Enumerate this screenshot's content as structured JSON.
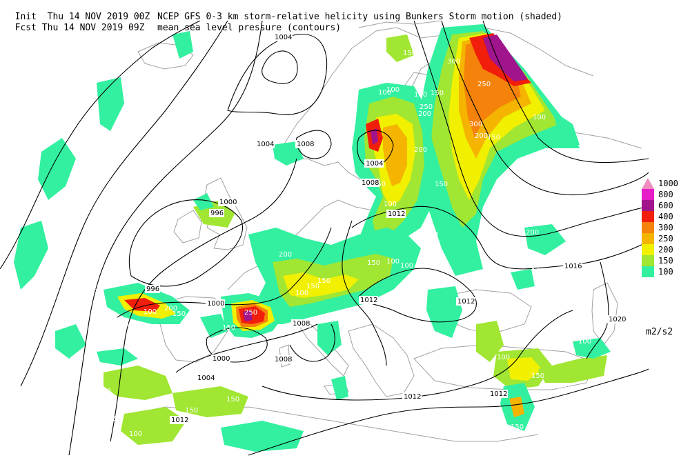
{
  "header": {
    "line1_left": "Init  Thu 14 NOV 2019 00Z",
    "line1_right": "NCEP GFS 0-3 km storm-relative helicity using Bunkers Storm motion (shaded)",
    "line2_left": "Fcst Thu 14 NOV 2019 09Z",
    "line2_right": "mean sea level pressure (contours)"
  },
  "legend": {
    "units": "m2/s2",
    "levels": [
      {
        "label": "1000",
        "color": "#f08cc0"
      },
      {
        "label": "800",
        "color": "#e61ec8"
      },
      {
        "label": "600",
        "color": "#a0148c"
      },
      {
        "label": "400",
        "color": "#f01e0a"
      },
      {
        "label": "300",
        "color": "#f5820a"
      },
      {
        "label": "250",
        "color": "#f5b400"
      },
      {
        "label": "200",
        "color": "#f0f000"
      },
      {
        "label": "150",
        "color": "#a0e632"
      },
      {
        "label": "100",
        "color": "#32f0a0"
      }
    ]
  },
  "map": {
    "coastline_color": "#a0a0a0",
    "contour_color": "#000000",
    "isobar_labels": [
      "1004",
      "1008",
      "1004",
      "1004",
      "1000",
      "996",
      "996",
      "1000",
      "1012",
      "1008",
      "1012",
      "1012",
      "1016",
      "1020",
      "1008",
      "1000",
      "1004",
      "1008",
      "1012",
      "1012",
      "1012"
    ],
    "shade_labels": [
      "150",
      "300",
      "100",
      "250",
      "200",
      "300",
      "250",
      "200",
      "150",
      "100",
      "100",
      "150",
      "100",
      "150",
      "200",
      "150",
      "100",
      "100",
      "150",
      "200",
      "150",
      "100",
      "150",
      "100",
      "150",
      "100",
      "200",
      "150",
      "100",
      "150",
      "250",
      "200",
      "100",
      "150",
      "150",
      "100",
      "100",
      "150",
      "100",
      "200",
      "100",
      "150",
      "100",
      "150",
      "150",
      "100",
      "150",
      "150",
      "100",
      "100"
    ]
  }
}
